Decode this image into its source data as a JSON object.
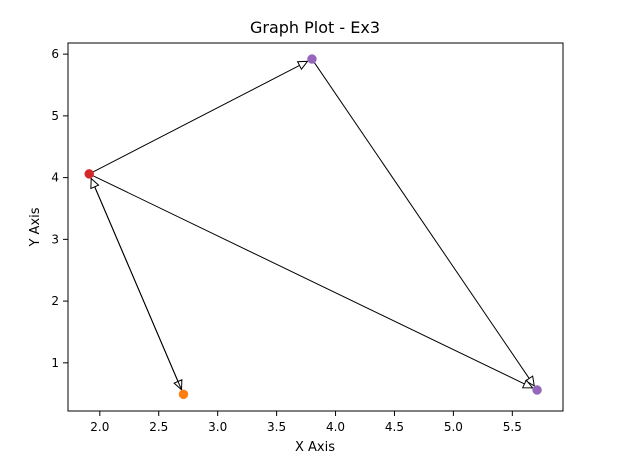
{
  "chart_data": {
    "type": "scatter",
    "title": "Graph Plot - Ex3",
    "xlabel": "X Axis",
    "ylabel": "Y Axis",
    "xlim": [
      1.73,
      5.93
    ],
    "ylim": [
      0.22,
      6.18
    ],
    "grid": false,
    "x_ticks": [
      2.0,
      2.5,
      3.0,
      3.5,
      4.0,
      4.5,
      5.0,
      5.5
    ],
    "y_ticks": [
      1,
      2,
      3,
      4,
      5,
      6
    ],
    "x_tick_labels": [
      "2.0",
      "2.5",
      "3.0",
      "3.5",
      "4.0",
      "4.5",
      "5.0",
      "5.5"
    ],
    "y_tick_labels": [
      "1",
      "2",
      "3",
      "4",
      "5",
      "6"
    ],
    "points": [
      {
        "id": "p1",
        "x": 1.91,
        "y": 4.06,
        "color": "#d62728"
      },
      {
        "id": "p2",
        "x": 3.8,
        "y": 5.92,
        "color": "#9467bd"
      },
      {
        "id": "p3",
        "x": 5.71,
        "y": 0.56,
        "color": "#9467bd"
      },
      {
        "id": "p4",
        "x": 2.71,
        "y": 0.49,
        "color": "#ff7f0e"
      }
    ],
    "edges": [
      {
        "from": "p1",
        "to": "p2"
      },
      {
        "from": "p2",
        "to": "p3"
      },
      {
        "from": "p1",
        "to": "p3"
      },
      {
        "from": "p1",
        "to": "p4"
      },
      {
        "from": "p4",
        "to": "p1"
      }
    ]
  }
}
